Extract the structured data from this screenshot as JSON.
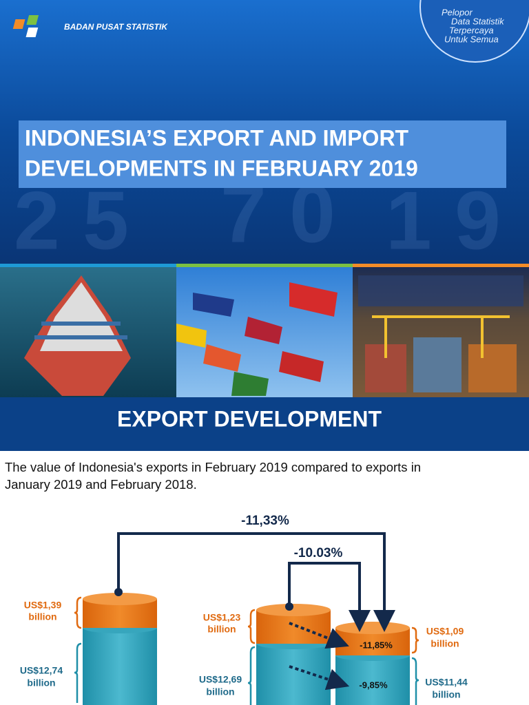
{
  "header": {
    "agency": "BADAN PUSAT STATISTIK",
    "tagline": [
      "Pelopor",
      "Data Statistik",
      "Terpercaya",
      "Untuk Semua"
    ]
  },
  "title": [
    "INDONESIA’S EXPORT AND IMPORT",
    "DEVELOPMENTS IN FEBRUARY 2019"
  ],
  "section_title": "EXPORT DEVELOPMENT",
  "intro": [
    "The value of Indonesia's exports in February 2019 compared to exports in",
    "January 2019 and February 2018."
  ],
  "comparison": {
    "yearly_change": "-11,33%",
    "monthly_change": "-10.03%",
    "bars": [
      {
        "oil_gas": [
          "US$1,39",
          "billion"
        ],
        "non_oil_gas": [
          "US$12,74",
          "billion"
        ]
      },
      {
        "oil_gas": [
          "US$1,23",
          "billion"
        ],
        "non_oil_gas": [
          "US$12,69",
          "billion"
        ]
      },
      {
        "oil_gas": [
          "US$1,09",
          "billion"
        ],
        "non_oil_gas": [
          "US$11,44",
          "billion"
        ]
      }
    ],
    "oil_gas_change": "-11,85%",
    "non_oil_gas_change": "-9,85%"
  }
}
